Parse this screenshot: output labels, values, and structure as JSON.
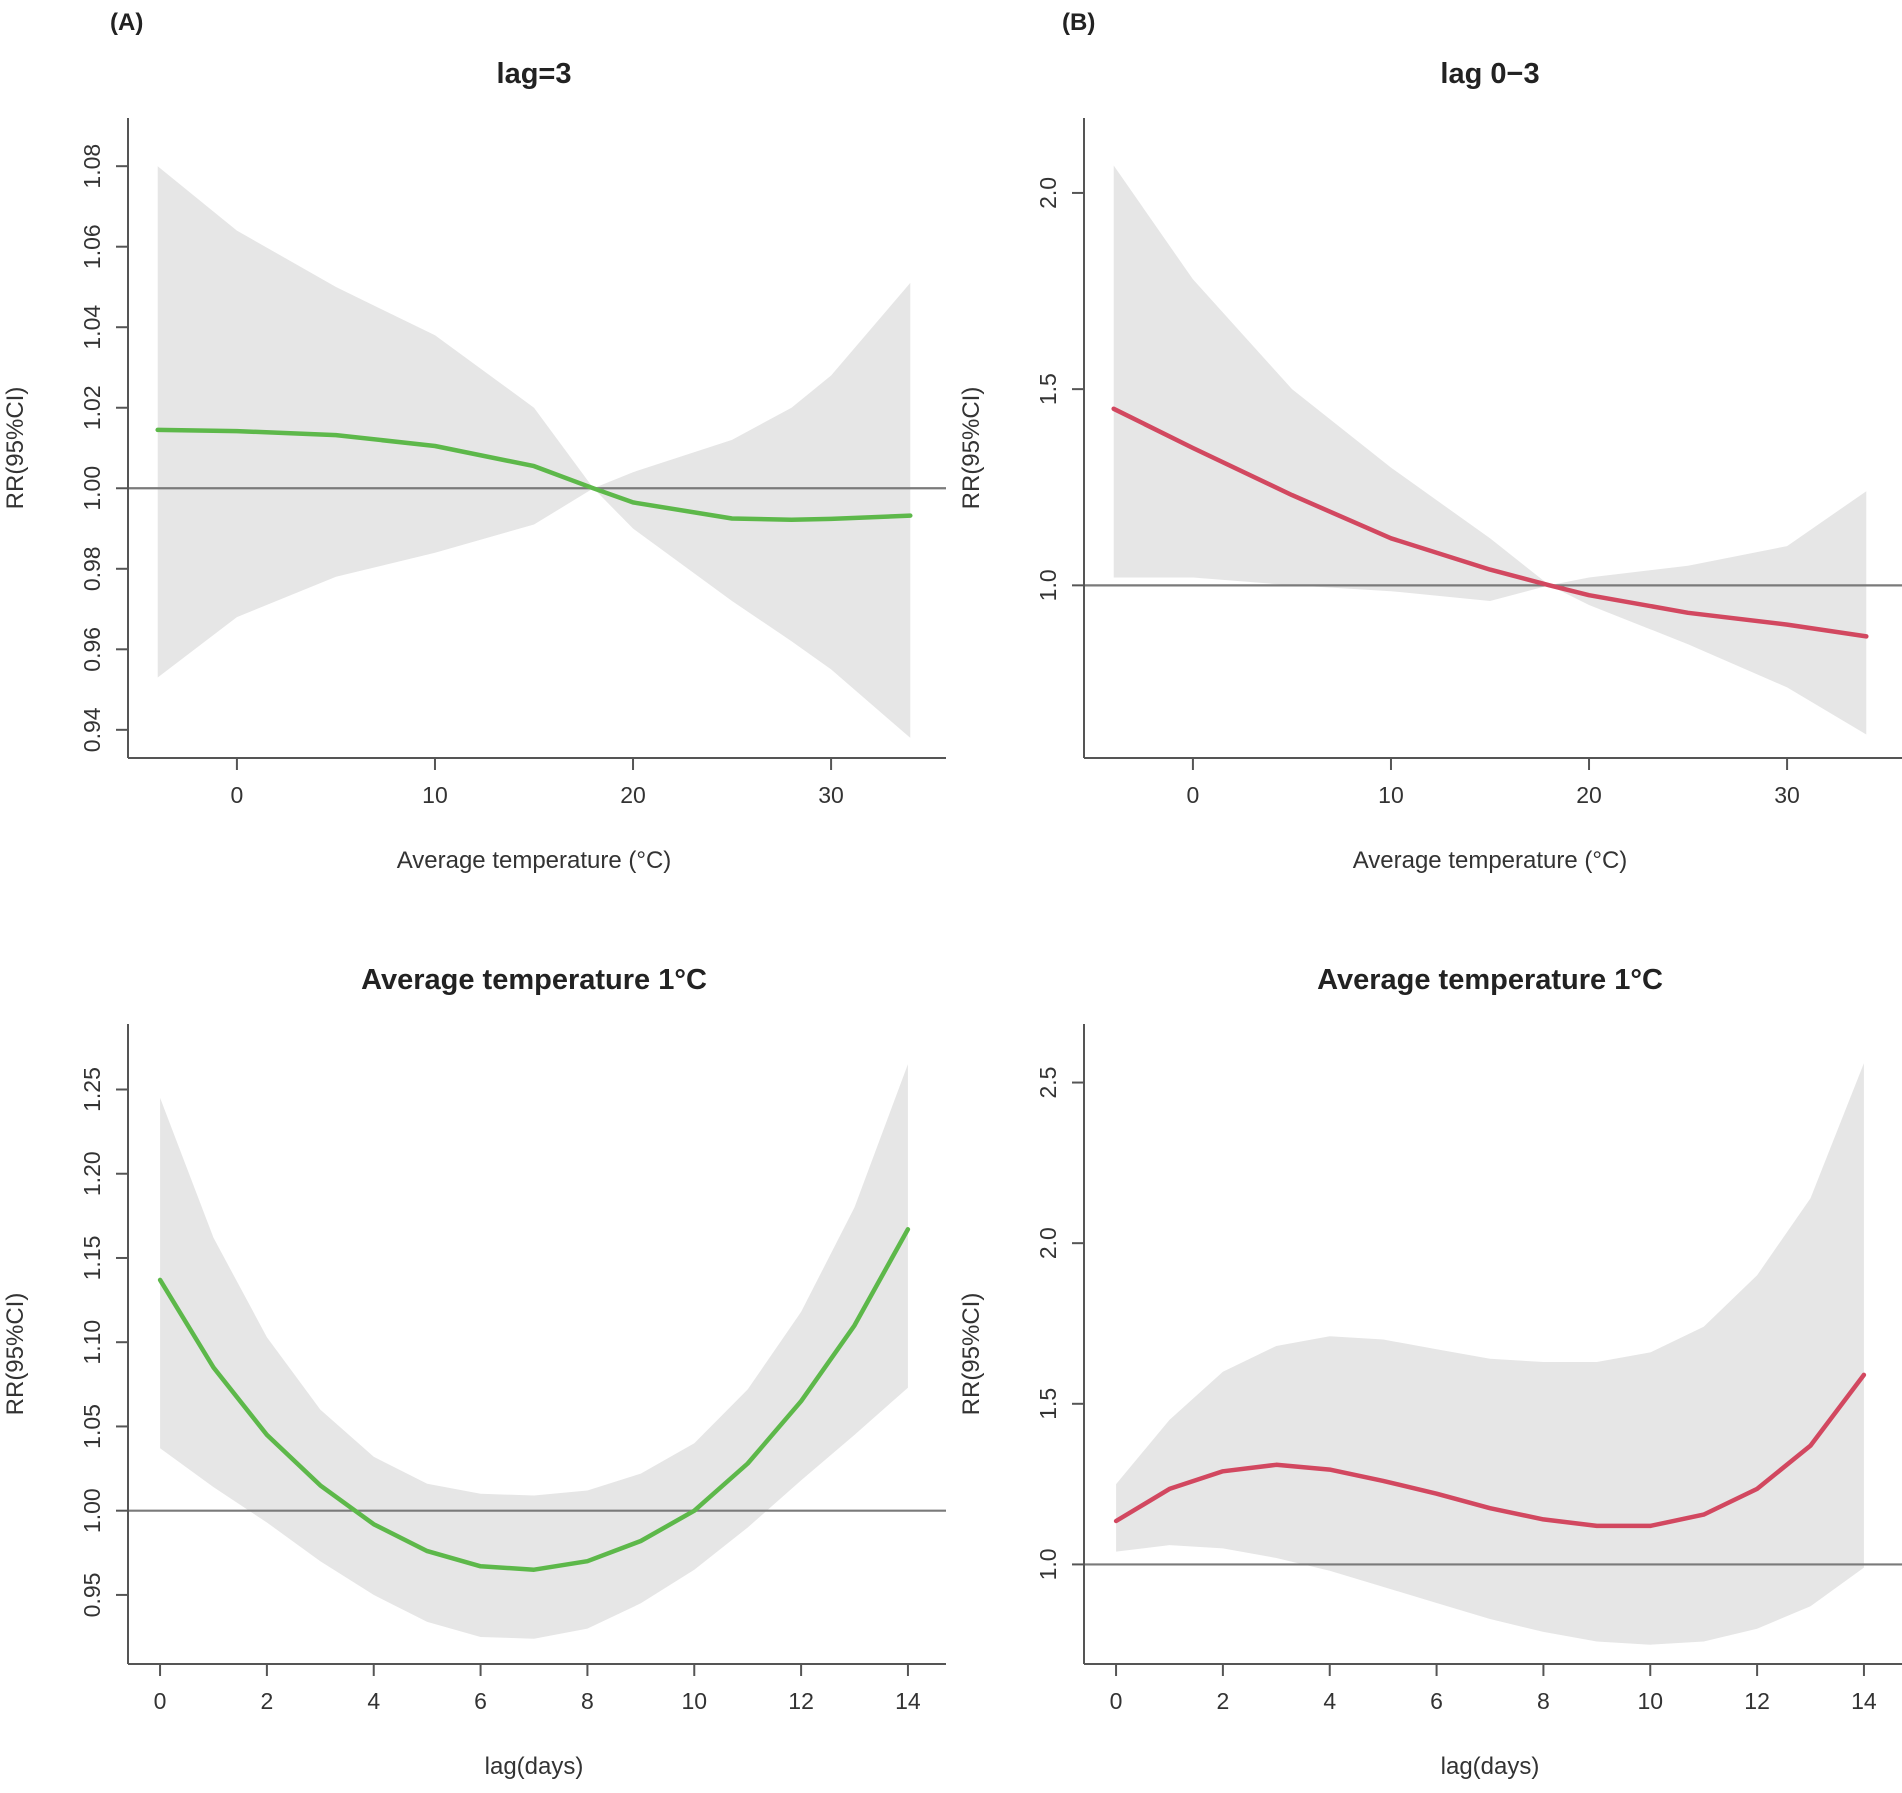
{
  "panel_tags": [
    "(A)",
    "(B)"
  ],
  "chart_data": [
    {
      "id": "A-top",
      "type": "line",
      "title": "lag=3",
      "xlabel": "Average temperature (°C)",
      "ylabel": "RR(95%CI)",
      "xlim": [
        -5.5,
        35.5
      ],
      "ylim": [
        0.933,
        1.087
      ],
      "xticks": [
        0,
        10,
        20,
        30
      ],
      "yticks": [
        0.94,
        0.96,
        0.98,
        1.0,
        1.02,
        1.04,
        1.06,
        1.08
      ],
      "ytick_labels": [
        "0.94",
        "0.96",
        "0.98",
        "1.00",
        "1.02",
        "1.04",
        "1.06",
        "1.08"
      ],
      "ytick_rotated": true,
      "reference_line": 1.0,
      "line_color": "#5db84a",
      "band_color": "#e6e6e6",
      "series": [
        {
          "name": "RR",
          "x": [
            -4,
            0,
            5,
            10,
            15,
            18,
            20,
            25,
            28,
            30,
            34
          ],
          "y": [
            1.0145,
            1.0142,
            1.0132,
            1.0105,
            1.0055,
            1.0,
            0.9965,
            0.9925,
            0.9922,
            0.9924,
            0.9932
          ]
        },
        {
          "name": "Upper 95% CI",
          "x": [
            -4,
            0,
            5,
            10,
            15,
            18,
            20,
            25,
            28,
            30,
            34
          ],
          "y": [
            1.08,
            1.064,
            1.05,
            1.038,
            1.02,
            1.0,
            1.004,
            1.012,
            1.02,
            1.028,
            1.051
          ]
        },
        {
          "name": "Lower 95% CI",
          "x": [
            -4,
            0,
            5,
            10,
            15,
            18,
            20,
            25,
            28,
            30,
            34
          ],
          "y": [
            0.953,
            0.968,
            0.978,
            0.984,
            0.991,
            1.0,
            0.99,
            0.972,
            0.962,
            0.955,
            0.938
          ]
        }
      ]
    },
    {
      "id": "B-top",
      "type": "line",
      "title": "lag 0−3",
      "xlabel": "Average temperature (°C)",
      "ylabel": "RR(95%CI)",
      "xlim": [
        -5.5,
        35.5
      ],
      "ylim": [
        0.56,
        2.14
      ],
      "xticks": [
        0,
        10,
        20,
        30
      ],
      "yticks": [
        1.0,
        1.5,
        2.0
      ],
      "ytick_labels": [
        "1.0",
        "1.5",
        "2.0"
      ],
      "ytick_rotated": true,
      "reference_line": 1.0,
      "line_color": "#d24860",
      "band_color": "#e6e6e6",
      "series": [
        {
          "name": "RR",
          "x": [
            -4,
            0,
            5,
            10,
            15,
            18,
            20,
            25,
            30,
            34
          ],
          "y": [
            1.45,
            1.35,
            1.23,
            1.12,
            1.04,
            1.0,
            0.975,
            0.93,
            0.9,
            0.87
          ]
        },
        {
          "name": "Upper 95% CI",
          "x": [
            -4,
            0,
            5,
            10,
            15,
            18,
            20,
            25,
            30,
            34
          ],
          "y": [
            2.07,
            1.78,
            1.5,
            1.3,
            1.12,
            1.0,
            1.02,
            1.05,
            1.1,
            1.24
          ]
        },
        {
          "name": "Lower 95% CI",
          "x": [
            -4,
            0,
            5,
            10,
            15,
            18,
            20,
            25,
            30,
            34
          ],
          "y": [
            1.02,
            1.02,
            1.0,
            0.985,
            0.96,
            1.0,
            0.95,
            0.85,
            0.74,
            0.62
          ]
        }
      ]
    },
    {
      "id": "A-bottom",
      "type": "line",
      "title": "Average temperature 1°C",
      "xlabel": "lag(days)",
      "ylabel": "RR(95%CI)",
      "xlim": [
        -0.6,
        14.6
      ],
      "ylim": [
        0.909,
        1.277
      ],
      "xticks": [
        0,
        2,
        4,
        6,
        8,
        10,
        12,
        14
      ],
      "yticks": [
        0.95,
        1.0,
        1.05,
        1.1,
        1.15,
        1.2,
        1.25
      ],
      "ytick_labels": [
        "0.95",
        "1.00",
        "1.05",
        "1.10",
        "1.15",
        "1.20",
        "1.25"
      ],
      "ytick_rotated": true,
      "reference_line": 1.0,
      "line_color": "#5db84a",
      "band_color": "#e6e6e6",
      "series": [
        {
          "name": "RR",
          "x": [
            0,
            1,
            2,
            3,
            4,
            5,
            6,
            7,
            8,
            9,
            10,
            11,
            12,
            13,
            14
          ],
          "y": [
            1.137,
            1.085,
            1.045,
            1.015,
            0.992,
            0.976,
            0.967,
            0.965,
            0.97,
            0.982,
            1.0,
            1.028,
            1.065,
            1.11,
            1.167
          ]
        },
        {
          "name": "Upper 95% CI",
          "x": [
            0,
            1,
            2,
            3,
            4,
            5,
            6,
            7,
            8,
            9,
            10,
            11,
            12,
            13,
            14
          ],
          "y": [
            1.245,
            1.162,
            1.103,
            1.06,
            1.032,
            1.016,
            1.01,
            1.009,
            1.012,
            1.022,
            1.04,
            1.072,
            1.118,
            1.18,
            1.265
          ]
        },
        {
          "name": "Lower 95% CI",
          "x": [
            0,
            1,
            2,
            3,
            4,
            5,
            6,
            7,
            8,
            9,
            10,
            11,
            12,
            13,
            14
          ],
          "y": [
            1.037,
            1.014,
            0.993,
            0.97,
            0.95,
            0.934,
            0.925,
            0.924,
            0.93,
            0.945,
            0.965,
            0.99,
            1.018,
            1.045,
            1.073
          ]
        }
      ]
    },
    {
      "id": "B-bottom",
      "type": "line",
      "title": "Average temperature 1°C",
      "xlabel": "lag(days)",
      "ylabel": "RR(95%CI)",
      "xlim": [
        -0.6,
        14.6
      ],
      "ylim": [
        0.69,
        2.62
      ],
      "xticks": [
        0,
        2,
        4,
        6,
        8,
        10,
        12,
        14
      ],
      "yticks": [
        1.0,
        1.5,
        2.0,
        2.5
      ],
      "ytick_labels": [
        "1.0",
        "1.5",
        "2.0",
        "2.5"
      ],
      "ytick_rotated": true,
      "reference_line": 1.0,
      "line_color": "#d24860",
      "band_color": "#e6e6e6",
      "series": [
        {
          "name": "RR",
          "x": [
            0,
            1,
            2,
            3,
            4,
            5,
            6,
            7,
            8,
            9,
            10,
            11,
            12,
            13,
            14
          ],
          "y": [
            1.135,
            1.235,
            1.29,
            1.31,
            1.295,
            1.26,
            1.22,
            1.175,
            1.14,
            1.12,
            1.12,
            1.155,
            1.235,
            1.37,
            1.59
          ]
        },
        {
          "name": "Upper 95% CI",
          "x": [
            0,
            1,
            2,
            3,
            4,
            5,
            6,
            7,
            8,
            9,
            10,
            11,
            12,
            13,
            14
          ],
          "y": [
            1.25,
            1.45,
            1.6,
            1.68,
            1.71,
            1.7,
            1.67,
            1.64,
            1.63,
            1.63,
            1.66,
            1.74,
            1.9,
            2.14,
            2.56
          ]
        },
        {
          "name": "Lower 95% CI",
          "x": [
            0,
            1,
            2,
            3,
            4,
            5,
            6,
            7,
            8,
            9,
            10,
            11,
            12,
            13,
            14
          ],
          "y": [
            1.04,
            1.06,
            1.05,
            1.02,
            0.98,
            0.93,
            0.88,
            0.83,
            0.79,
            0.76,
            0.75,
            0.76,
            0.8,
            0.87,
            0.99
          ]
        }
      ]
    }
  ]
}
